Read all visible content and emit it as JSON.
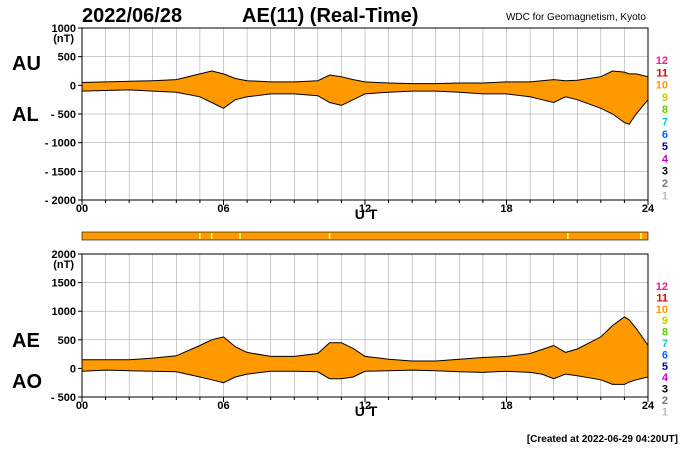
{
  "header": {
    "date": "2022/06/28",
    "title": "AE(11) (Real-Time)",
    "source": "WDC for Geomagnetism, Kyoto",
    "created": "[Created at 2022-06-29 04:20UT]"
  },
  "station_scale": {
    "labels": [
      "12",
      "11",
      "10",
      "9",
      "8",
      "7",
      "6",
      "5",
      "4",
      "3",
      "2",
      "1"
    ],
    "colors": [
      "#ff1493",
      "#e00000",
      "#ff9900",
      "#cccc00",
      "#66cc00",
      "#00cccc",
      "#0066ff",
      "#0000aa",
      "#cc00cc",
      "#000000",
      "#777777",
      "#bbbbbb"
    ]
  },
  "colors": {
    "fill": "#ff9900",
    "outline": "#000000",
    "grid": "#999999",
    "bar": "#ff9900",
    "bar_marks": "#ffff66"
  },
  "chart_data": [
    {
      "type": "area",
      "panel": "AU/AL",
      "series_labels": [
        "AU",
        "AL"
      ],
      "ylabel_unit": "(nT)",
      "xlabel": "U T",
      "xlim": [
        0,
        24
      ],
      "ylim": [
        -2000,
        1000
      ],
      "yticks": [
        1000,
        500,
        0,
        -500,
        -1000,
        -1500,
        -2000
      ],
      "ytick_labels": [
        "1000",
        "500",
        "0",
        "- 500",
        "- 1000",
        "- 1500",
        "- 2000"
      ],
      "xticks": [
        0,
        6,
        12,
        18,
        24
      ],
      "xtick_labels": [
        "00",
        "06",
        "12",
        "18",
        "24"
      ],
      "grid": true,
      "x": [
        0,
        1,
        2,
        3,
        4,
        5,
        5.5,
        6,
        6.5,
        7,
        8,
        9,
        10,
        10.5,
        11,
        11.5,
        12,
        13,
        14,
        15,
        16,
        17,
        18,
        19,
        19.5,
        20,
        20.5,
        21,
        22,
        22.5,
        23,
        23.2,
        23.5,
        24
      ],
      "series": [
        {
          "name": "AU",
          "values": [
            50,
            60,
            70,
            80,
            100,
            200,
            250,
            200,
            120,
            80,
            60,
            60,
            80,
            180,
            150,
            100,
            60,
            40,
            30,
            30,
            40,
            40,
            60,
            60,
            80,
            100,
            80,
            90,
            150,
            250,
            230,
            200,
            200,
            150
          ]
        },
        {
          "name": "AL",
          "values": [
            -100,
            -90,
            -80,
            -100,
            -120,
            -200,
            -300,
            -400,
            -250,
            -200,
            -150,
            -150,
            -180,
            -300,
            -350,
            -250,
            -150,
            -120,
            -100,
            -100,
            -120,
            -150,
            -150,
            -200,
            -250,
            -300,
            -200,
            -250,
            -400,
            -500,
            -650,
            -680,
            -500,
            -250
          ]
        }
      ]
    },
    {
      "type": "area",
      "panel": "AE/AO",
      "series_labels": [
        "AE",
        "AO"
      ],
      "ylabel_unit": "(nT)",
      "xlabel": "U T",
      "xlim": [
        0,
        24
      ],
      "ylim": [
        -500,
        2000
      ],
      "yticks": [
        2000,
        1500,
        1000,
        500,
        0,
        -500
      ],
      "ytick_labels": [
        "2000",
        "1500",
        "1000",
        "500",
        "0",
        "- 500"
      ],
      "xticks": [
        0,
        6,
        12,
        18,
        24
      ],
      "xtick_labels": [
        "00",
        "06",
        "12",
        "18",
        "24"
      ],
      "grid": true,
      "x": [
        0,
        1,
        2,
        3,
        4,
        5,
        5.5,
        6,
        6.5,
        7,
        8,
        9,
        10,
        10.5,
        11,
        11.5,
        12,
        13,
        14,
        15,
        16,
        17,
        18,
        19,
        19.5,
        20,
        20.5,
        21,
        22,
        22.5,
        23,
        23.2,
        23.5,
        24
      ],
      "series": [
        {
          "name": "AE",
          "values": [
            150,
            150,
            150,
            180,
            220,
            400,
            500,
            550,
            380,
            280,
            210,
            210,
            260,
            450,
            450,
            350,
            210,
            160,
            130,
            130,
            160,
            190,
            210,
            260,
            330,
            400,
            280,
            340,
            550,
            750,
            900,
            850,
            700,
            400
          ]
        },
        {
          "name": "AO",
          "values": [
            -50,
            -30,
            -40,
            -50,
            -60,
            -150,
            -200,
            -250,
            -150,
            -100,
            -50,
            -50,
            -60,
            -180,
            -180,
            -150,
            -50,
            -40,
            -30,
            -40,
            -60,
            -70,
            -50,
            -70,
            -100,
            -180,
            -100,
            -130,
            -200,
            -280,
            -280,
            -240,
            -200,
            -150
          ]
        }
      ]
    }
  ],
  "data_quality_bar": {
    "marks_hours": [
      5.0,
      5.5,
      6.7,
      10.5,
      20.6,
      23.7
    ]
  }
}
